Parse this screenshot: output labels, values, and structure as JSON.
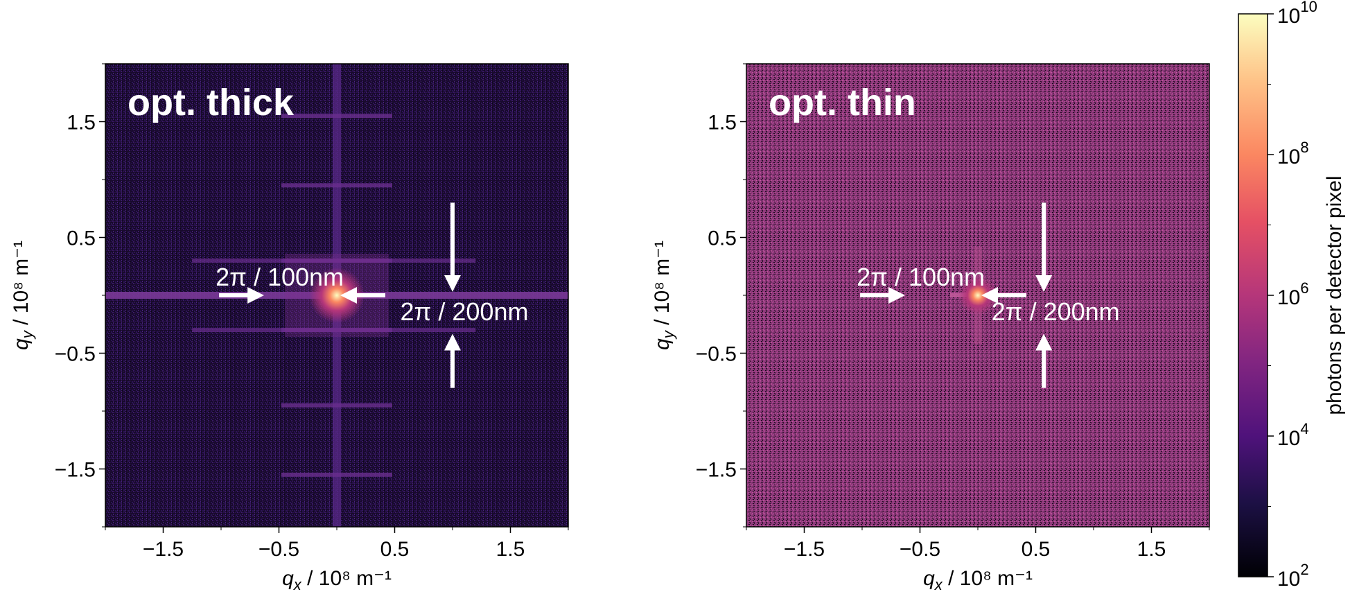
{
  "colors": {
    "noise_dark": "#201040",
    "noise_pink": "#b04a8a",
    "colormap": "magma",
    "annotation": "#ffffff"
  },
  "chart_data": [
    {
      "type": "heatmap",
      "title": "opt. thick",
      "xlabel_var": "q",
      "xlabel_sub": "x",
      "xlabel_unit": " / 10⁸ m⁻¹",
      "ylabel_var": "q",
      "ylabel_sub": "y",
      "ylabel_unit": " / 10⁸ m⁻¹",
      "xlim": [
        -2,
        2
      ],
      "ylim": [
        -2,
        2
      ],
      "xticks": [
        "−1.5",
        "−0.5",
        "0.5",
        "1.5"
      ],
      "yticks": [
        "1.5",
        "0.5",
        "−0.5",
        "−1.5"
      ],
      "xtick_values": [
        -1.5,
        -0.5,
        0.5,
        1.5
      ],
      "ytick_values": [
        1.5,
        0.5,
        -0.5,
        -1.5
      ],
      "annotations": [
        {
          "text": "2π / 100nm",
          "feature_q": 0.628
        },
        {
          "text": "2π / 200nm",
          "feature_q": 0.314
        }
      ]
    },
    {
      "type": "heatmap",
      "title": "opt. thin",
      "xlabel_var": "q",
      "xlabel_sub": "x",
      "xlabel_unit": " / 10⁸ m⁻¹",
      "ylabel_var": "q",
      "ylabel_sub": "y",
      "ylabel_unit": " / 10⁸ m⁻¹",
      "xlim": [
        -2,
        2
      ],
      "ylim": [
        -2,
        2
      ],
      "xticks": [
        "−1.5",
        "−0.5",
        "0.5",
        "1.5"
      ],
      "yticks": [
        "1.5",
        "0.5",
        "−0.5",
        "−1.5"
      ],
      "xtick_values": [
        -1.5,
        -0.5,
        0.5,
        1.5
      ],
      "ytick_values": [
        1.5,
        0.5,
        -0.5,
        -1.5
      ],
      "annotations": [
        {
          "text": "2π / 100nm",
          "feature_q": 0.628
        },
        {
          "text": "2π / 200nm",
          "feature_q": 0.314
        }
      ]
    }
  ],
  "colorbar": {
    "label": "photons per detector pixel",
    "scale": "log",
    "range": [
      100,
      10000000000
    ],
    "tick_base": "10",
    "tick_exponents": [
      "10",
      "8",
      "6",
      "4",
      "2"
    ]
  }
}
